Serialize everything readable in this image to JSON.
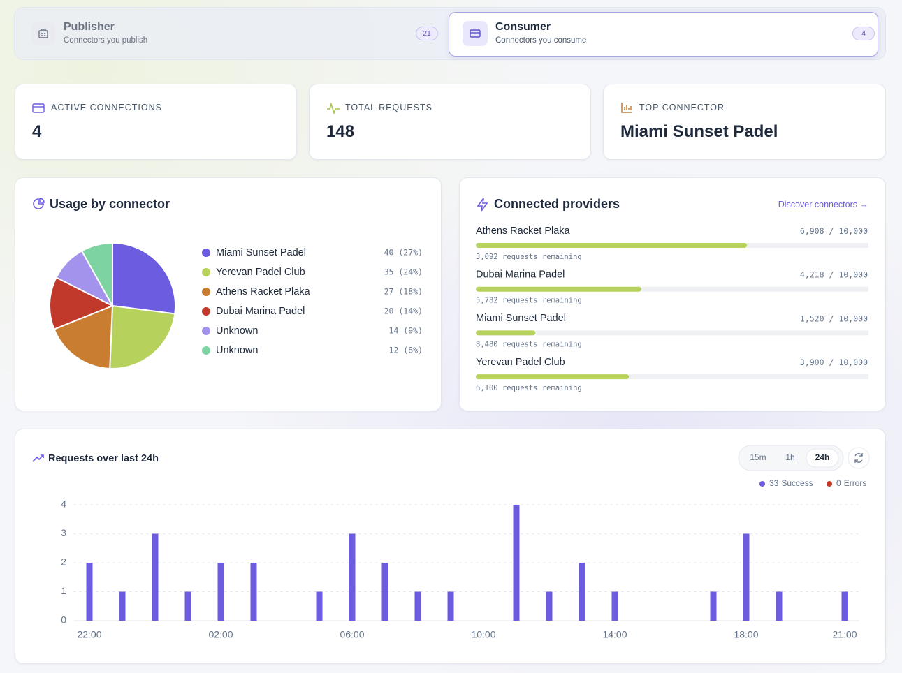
{
  "tabs": [
    {
      "title": "Publisher",
      "subtitle": "Connectors you publish",
      "count": 21,
      "active": false
    },
    {
      "title": "Consumer",
      "subtitle": "Connectors you consume",
      "count": 4,
      "active": true
    }
  ],
  "stats": [
    {
      "label": "ACTIVE CONNECTIONS",
      "value": 4
    },
    {
      "label": "TOTAL REQUESTS",
      "value": 148
    },
    {
      "label": "TOP CONNECTOR",
      "value": "Miami Sunset Padel"
    }
  ],
  "chart_data": [
    {
      "type": "pie",
      "title": "Usage by connector",
      "categories": [
        "Miami Sunset Padel",
        "Yerevan Padel Club",
        "Athens Racket Plaka",
        "Dubai Marina Padel",
        "Unknown",
        "Unknown"
      ],
      "values": [
        40,
        35,
        27,
        20,
        14,
        12
      ],
      "value_labels": [
        "40 (27%)",
        "35 (24%)",
        "27 (18%)",
        "20 (14%)",
        "14 (9%)",
        "12 (8%)"
      ],
      "colors": [
        "#6c5ce0",
        "#b6d25c",
        "#c97d30",
        "#c0392b",
        "#a393ec",
        "#7dd3a1"
      ]
    },
    {
      "type": "progress",
      "title": "Connected providers",
      "link": "Discover connectors →",
      "categories": [
        "Athens Racket Plaka",
        "Dubai Marina Padel",
        "Miami Sunset Padel",
        "Yerevan Padel Club"
      ],
      "values": [
        6908,
        4218,
        1520,
        3900
      ],
      "value_labels": [
        "6,908",
        "4,218",
        "1,520",
        "3,900"
      ],
      "separator": "/",
      "limit": {
        "value": 10000,
        "label": "10,000"
      },
      "remaining": [
        {
          "value": 3092,
          "label": "3,092 requests remaining"
        },
        {
          "value": 5782,
          "label": "5,782 requests remaining"
        },
        {
          "value": 8480,
          "label": "8,480 requests remaining"
        },
        {
          "value": 6100,
          "label": "6,100 requests remaining"
        }
      ],
      "color": "#b6d25c",
      "track_color": "#eef0f4"
    },
    {
      "type": "bar",
      "title": "Requests over last 24h",
      "ranges": [
        "15m",
        "1h",
        "24h"
      ],
      "selected_range": 2,
      "categories": [
        "22:00",
        null,
        null,
        null,
        "02:00",
        null,
        null,
        null,
        "06:00",
        null,
        null,
        null,
        "10:00",
        null,
        null,
        null,
        "14:00",
        null,
        null,
        null,
        "18:00",
        null,
        null,
        "21:00"
      ],
      "series": [
        {
          "name": "Success",
          "color": "#6c5ce0",
          "total": 33,
          "values": [
            2,
            1,
            3,
            1,
            2,
            2,
            0,
            1,
            3,
            2,
            1,
            1,
            0,
            4,
            1,
            2,
            1,
            0,
            0,
            1,
            3,
            1,
            0,
            1
          ]
        },
        {
          "name": "Errors",
          "color": "#c0392b",
          "total": 0
        }
      ],
      "ylim": [
        0,
        4
      ],
      "yticks": [
        0,
        1,
        2,
        3,
        4
      ],
      "grid": true
    }
  ]
}
